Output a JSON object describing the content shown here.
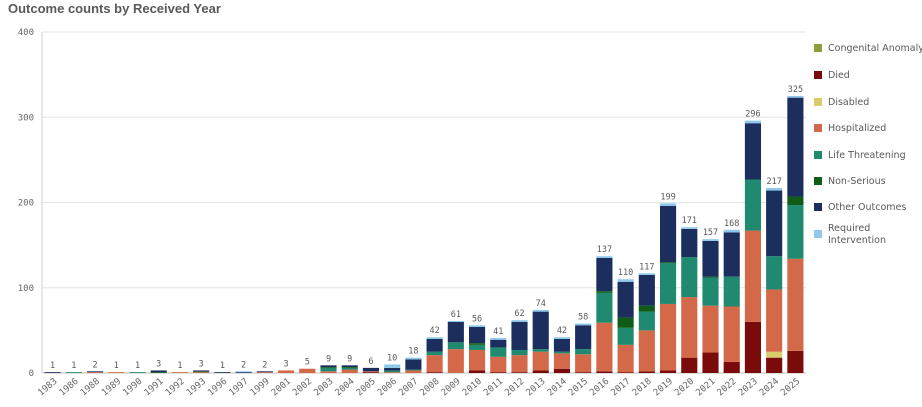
{
  "page": {
    "title": "Outcome counts by Received Year"
  },
  "chart_data": {
    "type": "bar",
    "stacked": true,
    "title": "Outcome counts by Received Year",
    "xlabel": "",
    "ylabel": "",
    "ylim": [
      0,
      400
    ],
    "yticks": [
      0,
      100,
      200,
      300,
      400
    ],
    "grid": true,
    "legend_position": "right",
    "categories": [
      "1983",
      "1986",
      "1988",
      "1989",
      "1990",
      "1991",
      "1992",
      "1993",
      "1996",
      "1997",
      "1999",
      "2001",
      "2002",
      "2003",
      "2004",
      "2005",
      "2006",
      "2007",
      "2008",
      "2009",
      "2010",
      "2011",
      "2012",
      "2013",
      "2014",
      "2015",
      "2016",
      "2017",
      "2018",
      "2019",
      "2020",
      "2021",
      "2022",
      "2023",
      "2024",
      "2025"
    ],
    "totals": [
      1,
      1,
      2,
      1,
      1,
      3,
      1,
      3,
      1,
      2,
      2,
      3,
      5,
      9,
      9,
      6,
      10,
      18,
      42,
      61,
      56,
      41,
      62,
      74,
      42,
      58,
      137,
      110,
      117,
      199,
      171,
      157,
      168,
      296,
      217,
      325
    ],
    "series": [
      {
        "name": "Congenital Anomaly",
        "color": "#8f9a3a",
        "values": [
          0,
          0,
          0,
          0,
          0,
          0,
          0,
          0,
          0,
          0,
          0,
          0,
          0,
          0,
          0,
          0,
          0,
          0,
          0,
          0,
          0,
          0,
          0,
          0,
          0,
          0,
          0,
          0,
          0,
          0,
          0,
          0,
          0,
          0,
          0,
          0
        ]
      },
      {
        "name": "Died",
        "color": "#7b0a0a",
        "values": [
          0,
          0,
          0,
          0,
          0,
          0,
          0,
          0,
          0,
          0,
          0,
          0,
          0,
          0,
          0,
          1,
          0,
          0,
          1,
          0,
          3,
          1,
          1,
          3,
          5,
          1,
          2,
          1,
          2,
          3,
          18,
          24,
          13,
          60,
          18,
          26
        ]
      },
      {
        "name": "Disabled",
        "color": "#d9cc6e",
        "values": [
          0,
          0,
          0,
          0,
          0,
          0,
          0,
          0,
          0,
          0,
          0,
          0,
          0,
          0,
          0,
          0,
          0,
          0,
          0,
          0,
          0,
          0,
          0,
          0,
          0,
          0,
          0,
          0,
          0,
          0,
          0,
          0,
          0,
          0,
          7,
          0
        ]
      },
      {
        "name": "Hospitalized",
        "color": "#d4694a",
        "values": [
          0,
          0,
          1,
          1,
          0,
          0,
          1,
          1,
          0,
          0,
          1,
          3,
          5,
          2,
          4,
          1,
          1,
          3,
          20,
          28,
          24,
          18,
          20,
          22,
          18,
          21,
          57,
          32,
          48,
          78,
          71,
          55,
          65,
          107,
          73,
          108
        ]
      },
      {
        "name": "Life Threatening",
        "color": "#1f8a6f",
        "values": [
          0,
          1,
          0,
          0,
          1,
          0,
          0,
          0,
          0,
          0,
          0,
          0,
          0,
          4,
          2,
          0,
          2,
          1,
          4,
          8,
          6,
          11,
          6,
          3,
          2,
          6,
          35,
          20,
          22,
          48,
          47,
          33,
          35,
          60,
          39,
          63
        ]
      },
      {
        "name": "Non-Serious",
        "color": "#0e5c18",
        "values": [
          0,
          0,
          0,
          0,
          0,
          1,
          0,
          1,
          0,
          0,
          0,
          0,
          0,
          1,
          1,
          0,
          0,
          0,
          0,
          0,
          2,
          0,
          0,
          0,
          0,
          0,
          2,
          12,
          7,
          1,
          0,
          1,
          0,
          0,
          0,
          10
        ]
      },
      {
        "name": "Other Outcomes",
        "color": "#1b2e5e",
        "values": [
          1,
          0,
          1,
          0,
          0,
          2,
          0,
          1,
          1,
          1,
          1,
          0,
          0,
          2,
          2,
          4,
          3,
          12,
          15,
          24,
          19,
          9,
          33,
          44,
          15,
          28,
          39,
          42,
          36,
          66,
          33,
          42,
          52,
          66,
          77,
          116
        ]
      },
      {
        "name": "Required Intervention",
        "color": "#8ec8ec",
        "values": [
          0,
          0,
          0,
          0,
          0,
          0,
          0,
          0,
          0,
          1,
          0,
          0,
          0,
          0,
          0,
          0,
          4,
          2,
          2,
          1,
          2,
          2,
          2,
          2,
          2,
          2,
          2,
          3,
          2,
          3,
          2,
          2,
          3,
          3,
          3,
          2
        ]
      }
    ]
  }
}
